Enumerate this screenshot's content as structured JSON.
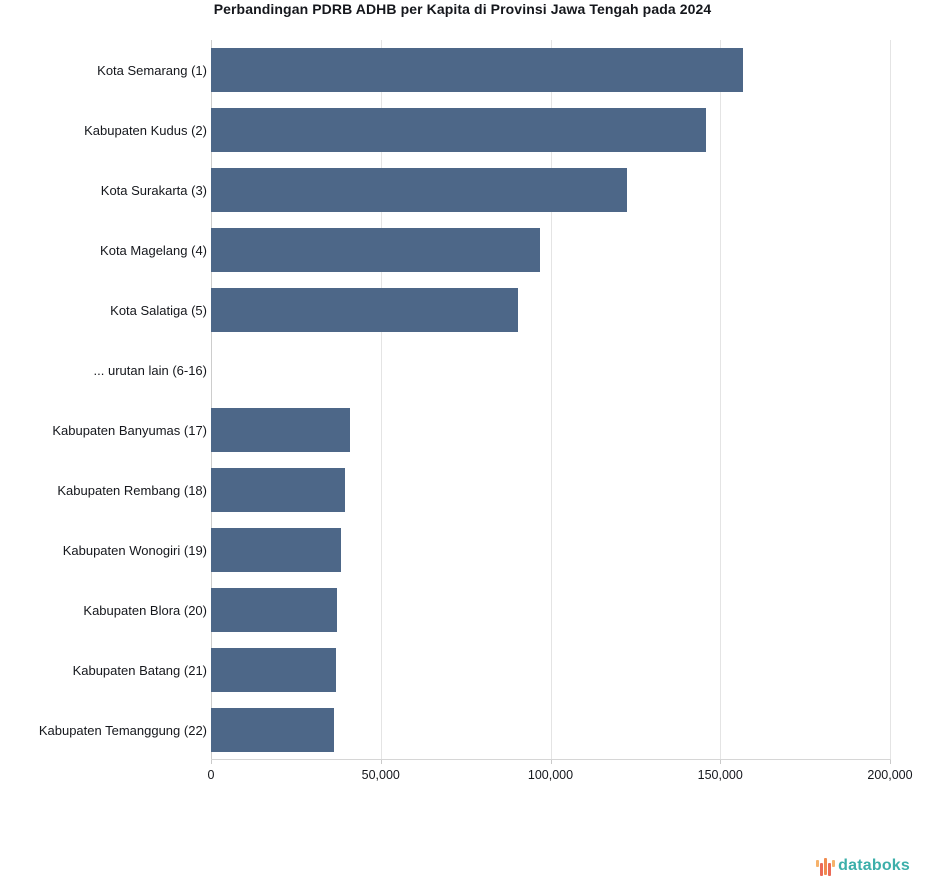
{
  "title": "Perbandingan PDRB ADHB per Kapita di Provinsi Jawa Tengah pada 2024",
  "chart_data": {
    "type": "bar",
    "orientation": "horizontal",
    "title": "Perbandingan PDRB ADHB per Kapita di Provinsi Jawa Tengah pada 2024",
    "categories": [
      "Kota Semarang (1)",
      "Kabupaten Kudus (2)",
      "Kota Surakarta (3)",
      "Kota Magelang (4)",
      "Kota Salatiga (5)",
      "... urutan lain (6-16)",
      "Kabupaten Banyumas (17)",
      "Kabupaten Rembang (18)",
      "Kabupaten Wonogiri (19)",
      "Kabupaten Blora (20)",
      "Kabupaten Batang (21)",
      "Kabupaten Temanggung (22)"
    ],
    "values": [
      156700,
      145700,
      122600,
      97000,
      90300,
      null,
      40800,
      39400,
      38200,
      37200,
      36800,
      36200
    ],
    "xlim": [
      0,
      200000
    ],
    "xticks": [
      0,
      50000,
      100000,
      150000,
      200000
    ],
    "xtick_labels": [
      "0",
      "50,000",
      "100,000",
      "150,000",
      "200,000"
    ],
    "xlabel": "",
    "ylabel": "",
    "grid": "vertical",
    "legend": "none",
    "bar_color": "#4d6788"
  },
  "footer": {
    "brand": "databoks",
    "brand_color": "#3cafaa",
    "icon_colors": [
      "#f6b26b",
      "#eb6a57",
      "#f08c4f",
      "#eb6a57",
      "#f6b26b"
    ]
  }
}
